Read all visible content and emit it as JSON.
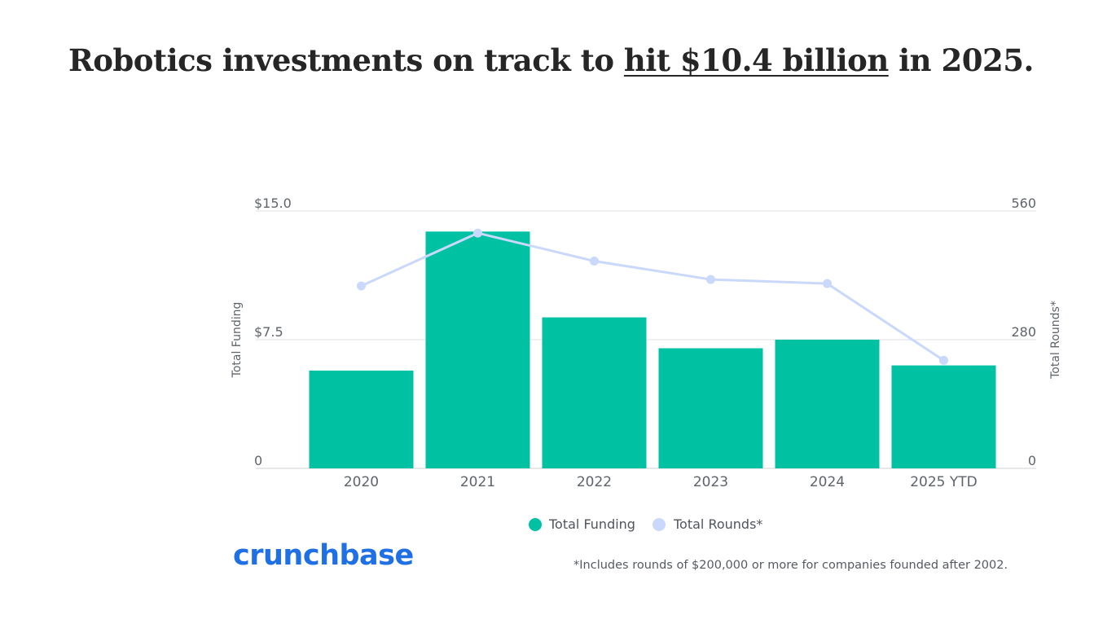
{
  "headline": {
    "before": "Robotics investments on track to ",
    "link": "hit $10.4 billion",
    "after": " in 2025."
  },
  "chart_data": {
    "type": "bar",
    "categories": [
      "2020",
      "2021",
      "2022",
      "2023",
      "2024",
      "2025 YTD"
    ],
    "series": [
      {
        "name": "Total Funding",
        "kind": "bar",
        "axis": "left",
        "color": "#00c2a3",
        "values": [
          5.7,
          13.8,
          8.8,
          7.0,
          7.5,
          6.0
        ]
      },
      {
        "name": "Total Rounds*",
        "kind": "line",
        "axis": "right",
        "color": "#c9d8fb",
        "values": [
          397,
          512,
          451,
          411,
          402,
          235
        ]
      }
    ],
    "ylabel": "Total Funding",
    "y2label": "Total Rounds*",
    "ylim": [
      0,
      15
    ],
    "y2lim": [
      0,
      560
    ],
    "yticks": [
      "0",
      "$7.5",
      "$15.0"
    ],
    "y2ticks": [
      "0",
      "280",
      "560"
    ],
    "legend_position": "bottom-center",
    "grid": true
  },
  "branding": {
    "logo": "crunchbase",
    "logo_color": "#1f6fe5"
  },
  "footnote": "*Includes rounds of $200,000 or more for companies founded after 2002."
}
